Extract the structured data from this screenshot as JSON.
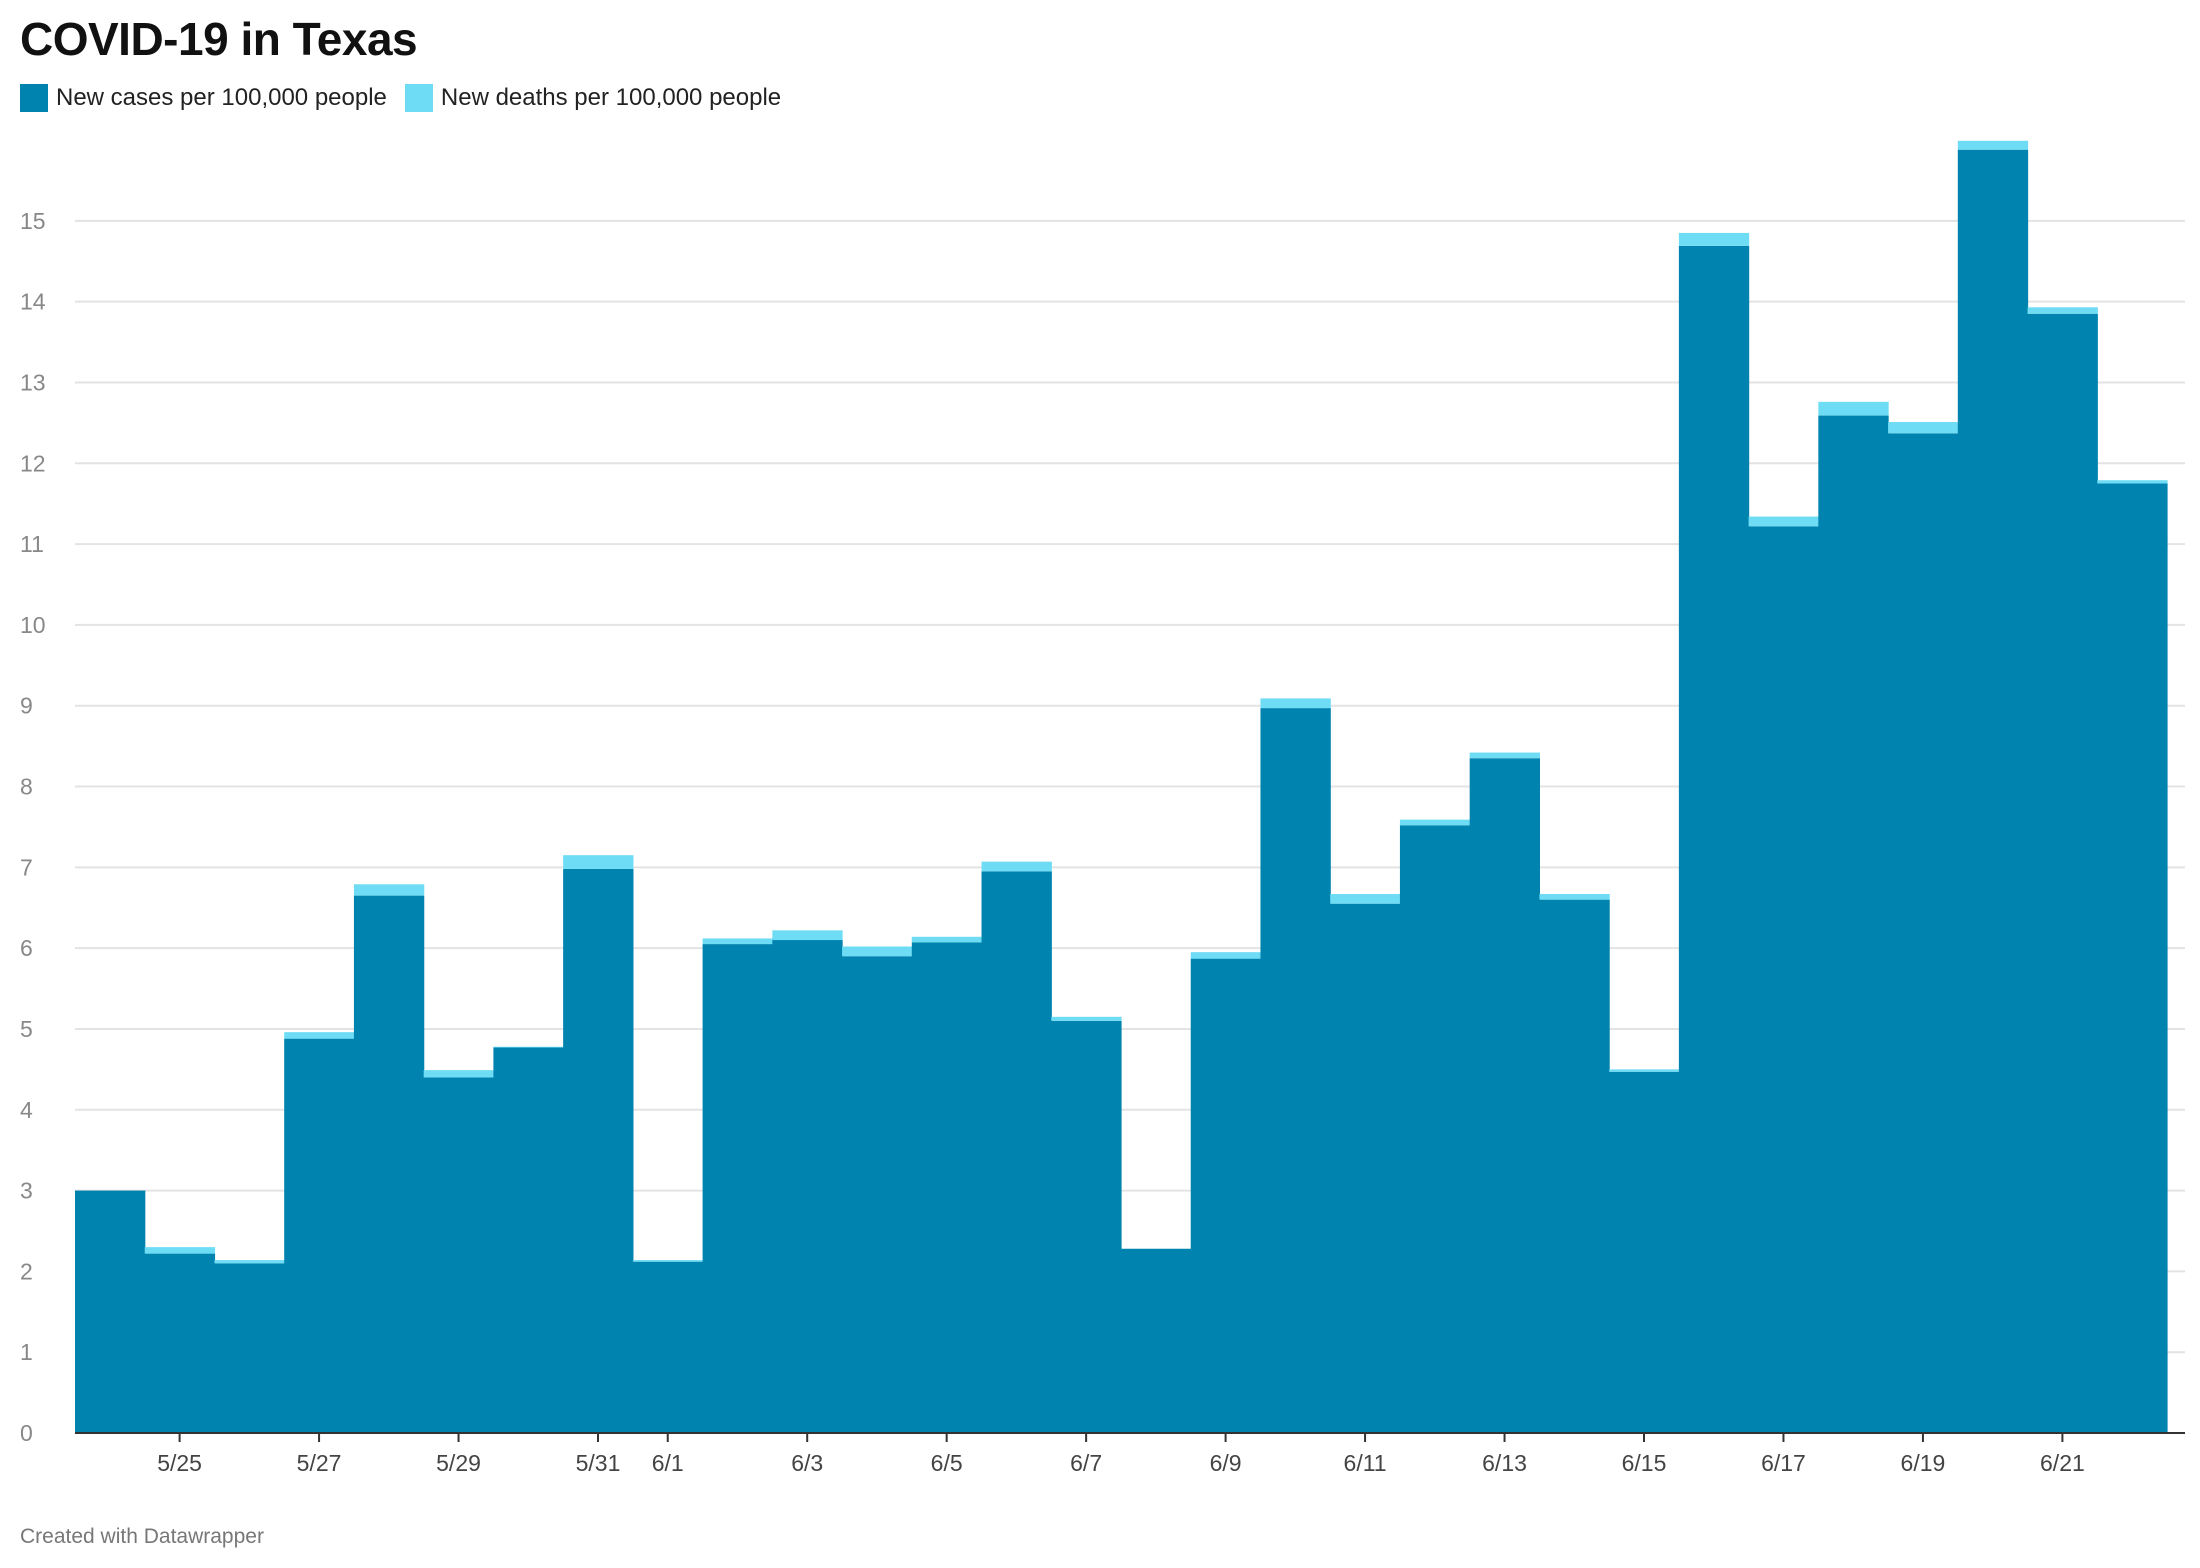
{
  "title": "COVID-19 in Texas",
  "credit": "Created with Datawrapper",
  "colors": {
    "cases": "#0083ae",
    "deaths": "#6ddcf4",
    "grid": "#e3e3e3",
    "axis": "#333333",
    "tick_text": "#888888"
  },
  "legend": [
    {
      "label": "New cases per 100,000 people",
      "color": "#0083ae"
    },
    {
      "label": "New deaths per 100,000 people",
      "color": "#6ddcf4"
    }
  ],
  "chart_data": {
    "type": "area",
    "stacked": true,
    "step": true,
    "title": "COVID-19 in Texas",
    "xlabel": "",
    "ylabel": "",
    "ylim": [
      0,
      16
    ],
    "yticks": [
      0,
      1,
      2,
      3,
      4,
      5,
      6,
      7,
      8,
      9,
      10,
      11,
      12,
      13,
      14,
      15
    ],
    "grid": true,
    "legend_position": "top-left",
    "x": [
      "5/24",
      "5/25",
      "5/26",
      "5/27",
      "5/28",
      "5/29",
      "5/30",
      "5/31",
      "6/1",
      "6/2",
      "6/3",
      "6/4",
      "6/5",
      "6/6",
      "6/7",
      "6/8",
      "6/9",
      "6/10",
      "6/11",
      "6/12",
      "6/13",
      "6/14",
      "6/15",
      "6/16",
      "6/17",
      "6/18",
      "6/19",
      "6/20",
      "6/21",
      "6/22"
    ],
    "xtick_labels": [
      "5/25",
      "5/27",
      "5/29",
      "5/31",
      "6/1",
      "6/3",
      "6/5",
      "6/7",
      "6/9",
      "6/11",
      "6/13",
      "6/15",
      "6/17",
      "6/19",
      "6/21"
    ],
    "series": [
      {
        "name": "New cases per 100,000 people",
        "values": [
          3.0,
          2.22,
          2.1,
          4.88,
          6.65,
          4.4,
          4.77,
          6.98,
          2.12,
          6.05,
          6.1,
          5.9,
          6.07,
          6.95,
          5.1,
          2.28,
          5.87,
          8.97,
          6.55,
          7.52,
          8.35,
          6.6,
          4.47,
          14.69,
          11.22,
          12.59,
          12.37,
          15.88,
          13.85,
          11.75
        ]
      },
      {
        "name": "New deaths per 100,000 people",
        "values": [
          0.0,
          0.08,
          0.04,
          0.08,
          0.14,
          0.09,
          0.01,
          0.17,
          0.02,
          0.07,
          0.12,
          0.12,
          0.07,
          0.12,
          0.05,
          0.0,
          0.08,
          0.12,
          0.12,
          0.07,
          0.07,
          0.07,
          0.03,
          0.16,
          0.12,
          0.17,
          0.14,
          0.11,
          0.08,
          0.04
        ]
      }
    ]
  }
}
